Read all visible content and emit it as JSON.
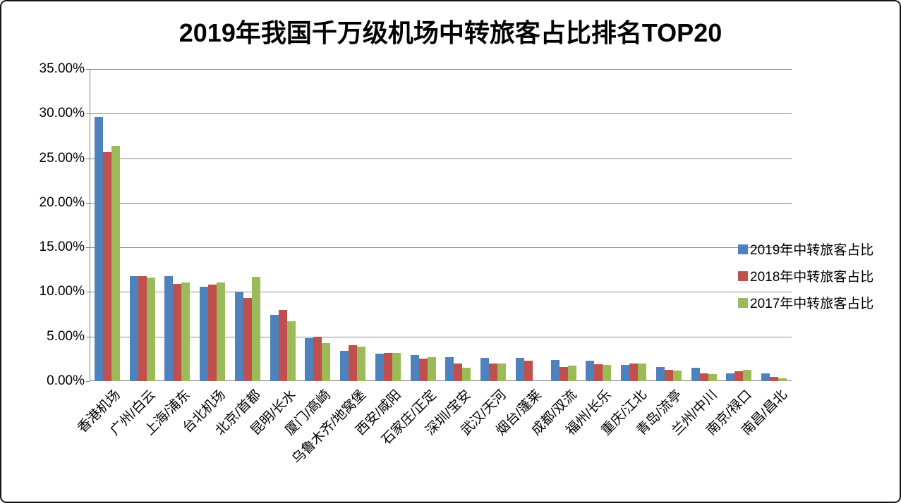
{
  "window": {
    "background": "#FFFFFF",
    "border_color": "#141414"
  },
  "chart_data": {
    "type": "bar",
    "title": "2019年我国千万级机场中转旅客占比排名TOP20",
    "categories": [
      "香港机场",
      "广州/白云",
      "上海/浦东",
      "台北机场",
      "北京/首都",
      "昆明/长水",
      "厦门/高崎",
      "乌鲁木齐/地窝堡",
      "西安/咸阳",
      "石家庄/正定",
      "深圳/宝安",
      "武汉/天河",
      "烟台/蓬莱",
      "成都/双流",
      "福州/长乐",
      "重庆/江北",
      "青岛/流亭",
      "兰州/中川",
      "南京/禄口",
      "南昌/昌北"
    ],
    "series": [
      {
        "name": "2019年中转旅客占比",
        "color": "#4F81BD",
        "values": [
          29.6,
          11.8,
          11.8,
          10.6,
          10.0,
          7.4,
          4.8,
          3.4,
          3.1,
          2.9,
          2.7,
          2.6,
          2.6,
          2.4,
          2.3,
          1.8,
          1.6,
          1.5,
          0.9,
          0.9
        ]
      },
      {
        "name": "2018年中转旅客占比",
        "color": "#C0504D",
        "values": [
          25.7,
          11.8,
          10.9,
          10.8,
          9.3,
          8.0,
          5.0,
          4.0,
          3.2,
          2.5,
          2.0,
          2.0,
          2.3,
          1.6,
          1.9,
          2.0,
          1.3,
          0.9,
          1.1,
          0.5
        ]
      },
      {
        "name": "2017年中转旅客占比",
        "color": "#9BBB59",
        "values": [
          26.4,
          11.6,
          11.1,
          11.1,
          11.7,
          6.7,
          4.3,
          3.9,
          3.2,
          2.7,
          1.5,
          2.0,
          0,
          1.7,
          1.8,
          2.0,
          1.2,
          0.8,
          1.3,
          0.3
        ]
      }
    ],
    "ylim": [
      0,
      35
    ],
    "ytick_step": 5,
    "ytick_labels": [
      "0.00%",
      "5.00%",
      "10.00%",
      "15.00%",
      "20.00%",
      "25.00%",
      "30.00%",
      "35.00%"
    ],
    "ylabel": "",
    "xlabel": "",
    "grid": true,
    "legend_position": "right",
    "gridline_color": "#8C8C8C",
    "axis_color": "#7F7F7F",
    "values_unit": "percent"
  }
}
